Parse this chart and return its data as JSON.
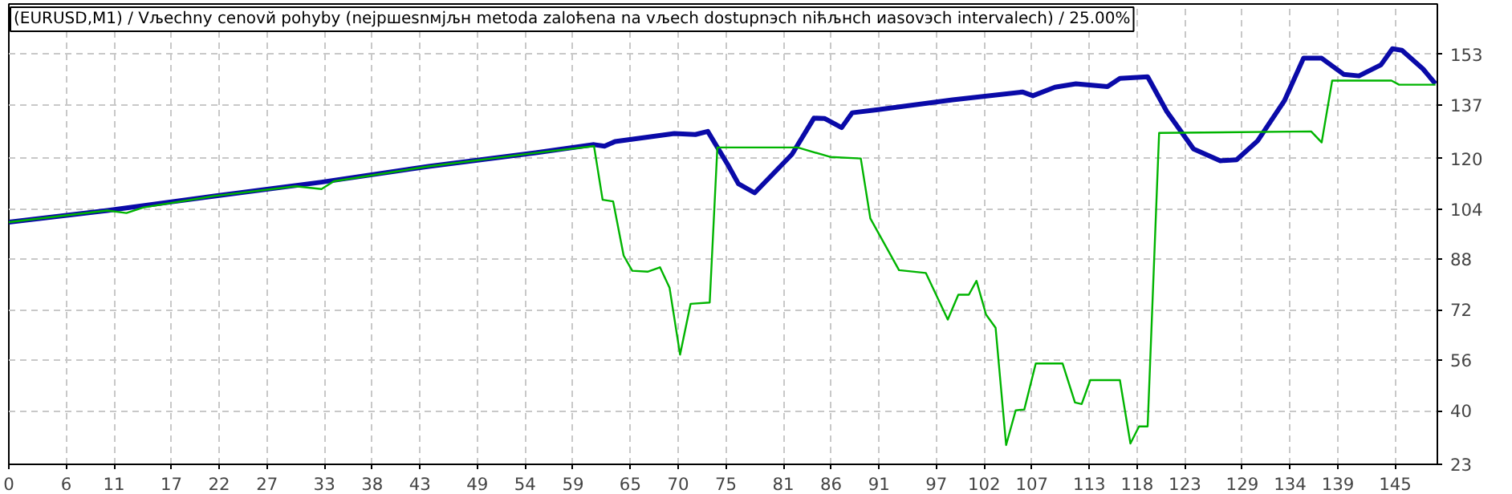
{
  "chart_data": {
    "type": "line",
    "title": "(EURUSD,M1) / Vљechny cenovй pohyby (nejpшesnмjљн metoda zaloћena na vљech dostupnэch niћљнch иasovэch intervalech) / 25.00%",
    "series": [
      {
        "color": "#0a0aa8",
        "x": [
          0,
          10.3,
          21.5,
          32.7,
          43.9,
          55.1,
          61.2,
          62.3,
          63.4,
          69.6,
          71.8,
          73.1,
          75.2,
          76.3,
          78.0,
          81.9,
          84.2,
          85.3,
          87.1,
          88.2,
          90.9,
          98.7,
          106.0,
          107.1,
          109.4,
          111.6,
          114.9,
          116.2,
          119.1,
          121.1,
          123.9,
          126.7,
          128.4,
          130.6,
          133.4,
          135.4,
          137.3,
          139.6,
          141.2,
          143.5,
          144.7,
          145.7,
          147.9,
          149.2
        ],
        "values": [
          99.8,
          103.5,
          108.1,
          112.5,
          117.5,
          121.8,
          124.4,
          123.9,
          125.4,
          127.9,
          127.6,
          128.6,
          118.0,
          112.0,
          109.1,
          121.3,
          132.8,
          132.7,
          129.8,
          134.5,
          135.5,
          138.6,
          141.1,
          139.9,
          142.6,
          143.7,
          142.8,
          145.4,
          145.9,
          134.9,
          123.0,
          119.3,
          119.6,
          125.6,
          138.3,
          151.8,
          151.8,
          146.7,
          146.2,
          149.7,
          154.8,
          154.3,
          148.4,
          143.7
        ]
      },
      {
        "color": "#00b400",
        "x": [
          0,
          10.3,
          12.3,
          14.1,
          21.5,
          30.0,
          32.7,
          34.0,
          43.9,
          55.1,
          61.2,
          62.1,
          63.2,
          64.3,
          65.2,
          66.8,
          68.1,
          69.1,
          70.2,
          71.3,
          73.3,
          74.1,
          78.0,
          82.5,
          85.9,
          89.1,
          90.1,
          93.1,
          95.9,
          98.2,
          99.3,
          100.4,
          101.2,
          102.2,
          103.2,
          104.3,
          105.3,
          106.2,
          107.4,
          110.2,
          111.5,
          112.2,
          113.1,
          116.2,
          117.3,
          118.2,
          119.1,
          120.3,
          136.2,
          137.3,
          138.4,
          144.6,
          145.4,
          149.2
        ],
        "values": [
          99.8,
          103.5,
          102.7,
          104.5,
          108.1,
          111.2,
          110.3,
          112.8,
          117.5,
          121.8,
          123.9,
          106.9,
          106.4,
          89.2,
          84.4,
          84.1,
          85.5,
          79.0,
          57.8,
          73.9,
          74.3,
          123.5,
          123.5,
          123.5,
          120.5,
          120.0,
          101.0,
          84.6,
          83.7,
          68.9,
          76.8,
          76.8,
          81.2,
          70.5,
          66.3,
          29.1,
          40.1,
          40.4,
          55.0,
          55.0,
          42.6,
          42.1,
          49.7,
          49.7,
          29.6,
          35.0,
          35.0,
          128.1,
          128.6,
          125.1,
          144.7,
          144.7,
          143.4,
          143.4
        ]
      }
    ],
    "xlim": [
      0,
      149.4
    ],
    "ylim": [
      23,
      169
    ],
    "xticks": [
      0,
      6,
      11,
      17,
      22,
      27,
      33,
      38,
      43,
      49,
      54,
      59,
      65,
      70,
      75,
      81,
      86,
      91,
      97,
      102,
      107,
      113,
      118,
      123,
      129,
      134,
      139,
      145
    ],
    "yticks": [
      23,
      40,
      56,
      72,
      88,
      104,
      120,
      137,
      153
    ],
    "grid": true,
    "marker": "none",
    "line_style": "solid"
  }
}
